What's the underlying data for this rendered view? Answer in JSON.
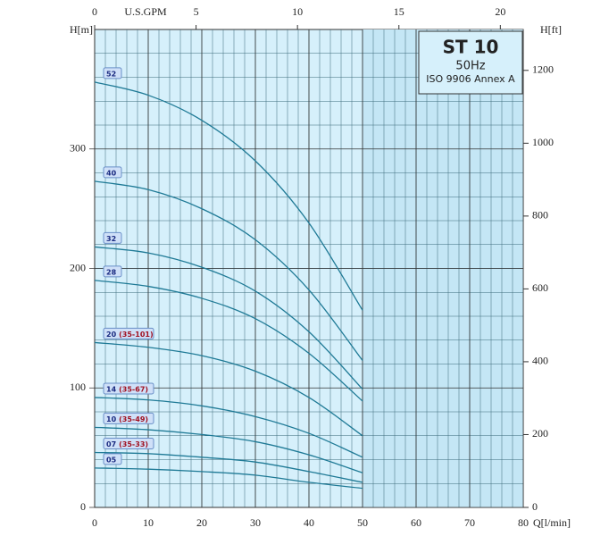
{
  "chart_data": {
    "type": "line",
    "title": "ST 10",
    "subtitle": "50Hz",
    "standard": "ISO 9906 Annex A",
    "x_label": "Q[l/min]",
    "y_label": "H[m]",
    "y2_label": "H[ft]",
    "x2_label": "U.S.GPM",
    "x": [
      0,
      10,
      20,
      30,
      40,
      50
    ],
    "xlim": [
      0,
      80
    ],
    "xticks": [
      0,
      10,
      20,
      30,
      40,
      50,
      60,
      70,
      80
    ],
    "ylim": [
      0,
      400
    ],
    "yticks": [
      0,
      100,
      200,
      300
    ],
    "x2lim": [
      0,
      21.13
    ],
    "x2ticks": [
      0,
      5,
      10,
      15,
      20
    ],
    "y2lim": [
      0,
      1312.3
    ],
    "y2ticks": [
      0,
      200,
      400,
      600,
      800,
      1000,
      1200
    ],
    "grid": true,
    "series": [
      {
        "name": "52",
        "color": "#1f7a96",
        "values": [
          356,
          345,
          324,
          290,
          238,
          165
        ]
      },
      {
        "name": "40",
        "color": "#1f7a96",
        "values": [
          273,
          266,
          250,
          224,
          182,
          123
        ]
      },
      {
        "name": "32",
        "color": "#1f7a96",
        "values": [
          218,
          213,
          201,
          181,
          147,
          99
        ]
      },
      {
        "name": "28",
        "color": "#1f7a96",
        "values": [
          190,
          185,
          175,
          158,
          129,
          89
        ]
      },
      {
        "name": "20",
        "range": "(35-101)",
        "color": "#1f7a96",
        "values": [
          138,
          134,
          127,
          114,
          92,
          60
        ]
      },
      {
        "name": "14",
        "range": "(35-67)",
        "color": "#1f7a96",
        "values": [
          92,
          90,
          85,
          76,
          62,
          42
        ]
      },
      {
        "name": "10",
        "range": "(35-49)",
        "color": "#1f7a96",
        "values": [
          67,
          65,
          61,
          55,
          44,
          29
        ]
      },
      {
        "name": "07",
        "range": "(35-33)",
        "color": "#1f7a96",
        "values": [
          46,
          45,
          42,
          38,
          30,
          21
        ]
      },
      {
        "name": "05",
        "color": "#1f7a96",
        "values": [
          33,
          32,
          30,
          27,
          21,
          16
        ]
      }
    ]
  }
}
